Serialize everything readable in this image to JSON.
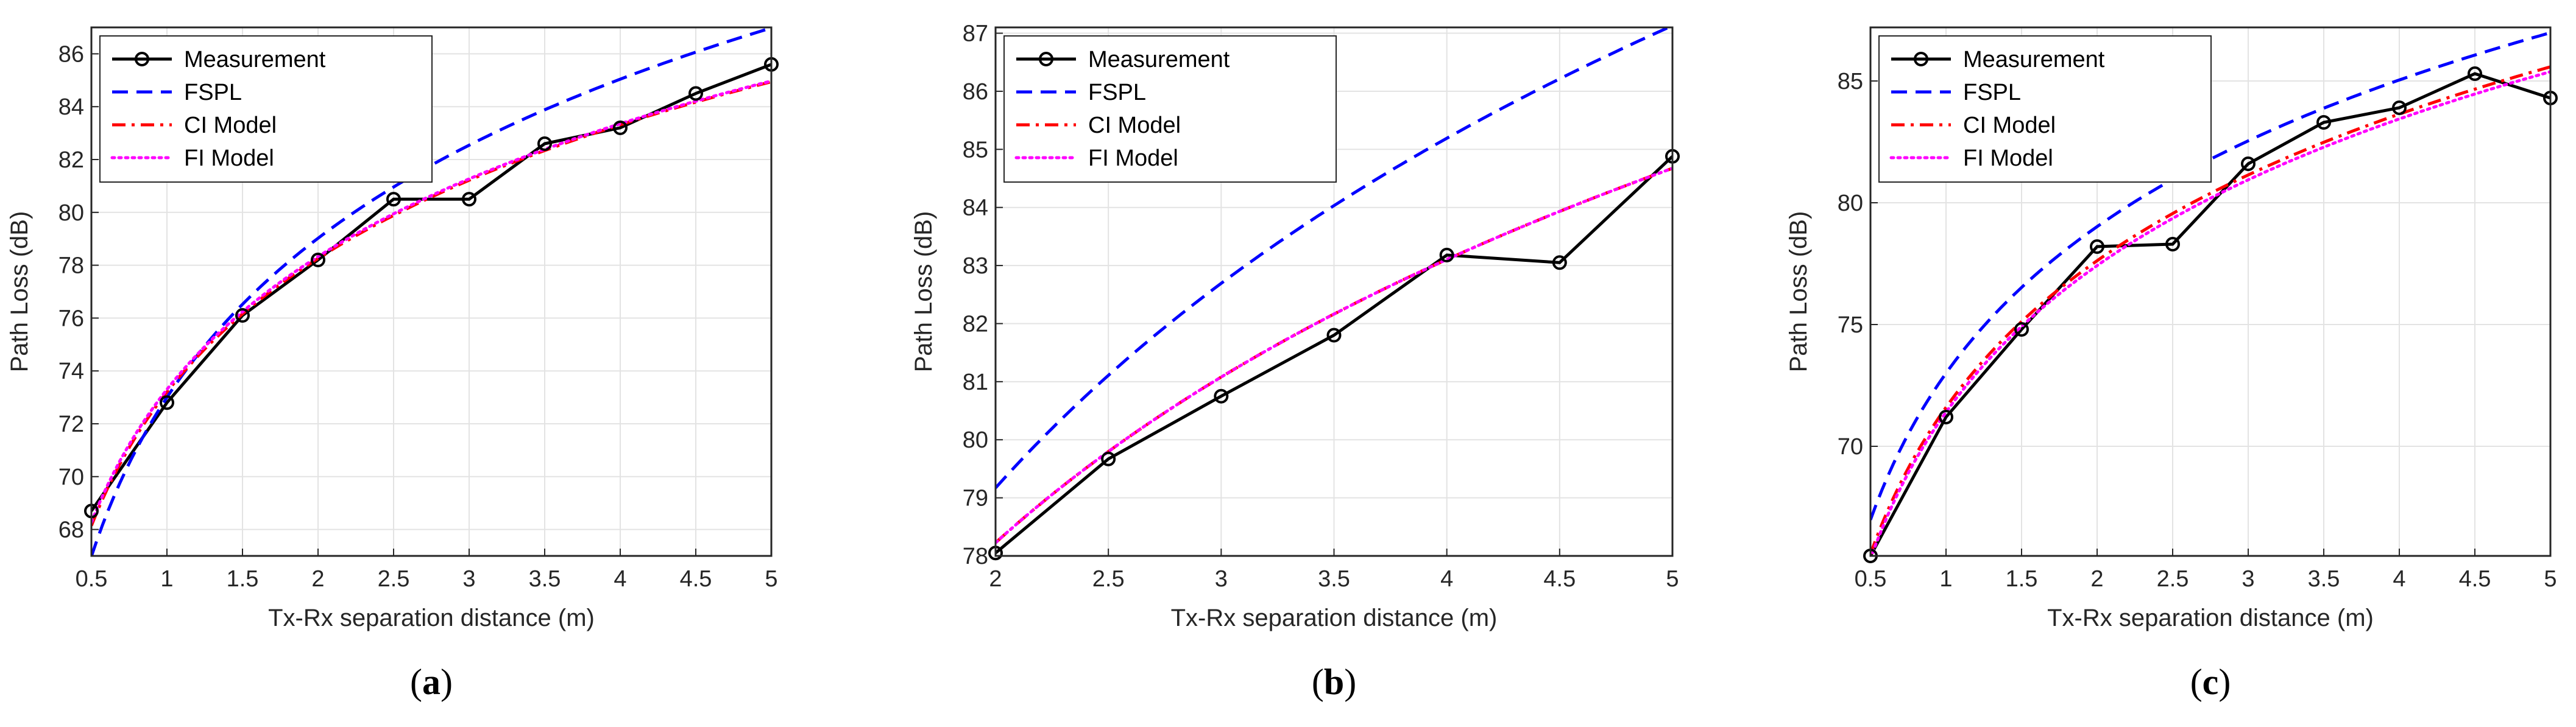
{
  "chart_data": [
    {
      "type": "line",
      "caption": "(a)",
      "caption_letter": "a",
      "xlabel": "Tx-Rx separation distance (m)",
      "ylabel": "Path Loss (dB)",
      "xlim": [
        0.5,
        5
      ],
      "ylim": [
        67,
        87
      ],
      "xticks": [
        0.5,
        1,
        1.5,
        2,
        2.5,
        3,
        3.5,
        4,
        4.5,
        5
      ],
      "xtick_labels": [
        "0.5",
        "1",
        "1.5",
        "2",
        "2.5",
        "3",
        "3.5",
        "4",
        "4.5",
        "5"
      ],
      "yticks": [
        68,
        70,
        72,
        74,
        76,
        78,
        80,
        82,
        84,
        86
      ],
      "ytick_labels": [
        "68",
        "70",
        "72",
        "74",
        "76",
        "78",
        "80",
        "82",
        "84",
        "86"
      ],
      "grid": true,
      "legend_position": "top-left",
      "series": [
        {
          "name": "Measurement",
          "color": "#000000",
          "style": "solid-marker",
          "x": [
            0.5,
            1,
            1.5,
            2,
            2.5,
            3,
            3.5,
            4,
            4.5,
            5
          ],
          "y": [
            68.7,
            72.8,
            76.1,
            78.2,
            80.5,
            80.5,
            82.6,
            83.2,
            84.5,
            85.6
          ]
        },
        {
          "name": "FSPL",
          "color": "#0000ff",
          "style": "dashed",
          "model": "log",
          "a": 73.0,
          "b": 20.0
        },
        {
          "name": "CI Model",
          "color": "#ff0000",
          "style": "dashdot",
          "model": "log",
          "a": 73.2,
          "b": 16.8
        },
        {
          "name": "FI Model",
          "color": "#ff00ff",
          "style": "dotted",
          "model": "log",
          "a": 73.3,
          "b": 16.7
        }
      ]
    },
    {
      "type": "line",
      "caption": "(b)",
      "caption_letter": "b",
      "xlabel": "Tx-Rx separation distance (m)",
      "ylabel": "Path Loss (dB)",
      "xlim": [
        2,
        5
      ],
      "ylim": [
        78,
        87.1
      ],
      "xticks": [
        2,
        2.5,
        3,
        3.5,
        4,
        4.5,
        5
      ],
      "xtick_labels": [
        "2",
        "2.5",
        "3",
        "3.5",
        "4",
        "4.5",
        "5"
      ],
      "yticks": [
        78,
        79,
        80,
        81,
        82,
        83,
        84,
        85,
        86,
        87
      ],
      "ytick_labels": [
        "78",
        "79",
        "80",
        "81",
        "82",
        "83",
        "84",
        "85",
        "86",
        "87"
      ],
      "grid": true,
      "legend_position": "top-left",
      "series": [
        {
          "name": "Measurement",
          "color": "#000000",
          "style": "solid-marker",
          "x": [
            2,
            2.5,
            3,
            3.5,
            4,
            4.5,
            5
          ],
          "y": [
            78.05,
            79.67,
            80.75,
            81.8,
            83.18,
            83.05,
            84.88
          ]
        },
        {
          "name": "FSPL",
          "color": "#0000ff",
          "style": "dashed",
          "model": "log",
          "a": 73.15,
          "b": 20.0
        },
        {
          "name": "CI Model",
          "color": "#ff0000",
          "style": "dashdot",
          "model": "log",
          "a": 73.35,
          "b": 16.2
        },
        {
          "name": "FI Model",
          "color": "#ff00ff",
          "style": "dotted",
          "model": "log",
          "a": 73.35,
          "b": 16.2
        }
      ]
    },
    {
      "type": "line",
      "caption": "(c)",
      "caption_letter": "c",
      "xlabel": "Tx-Rx separation distance (m)",
      "ylabel": "Path Loss (dB)",
      "xlim": [
        0.5,
        5
      ],
      "ylim": [
        65.5,
        87.2
      ],
      "xticks": [
        0.5,
        1,
        1.5,
        2,
        2.5,
        3,
        3.5,
        4,
        4.5,
        5
      ],
      "xtick_labels": [
        "0.5",
        "1",
        "1.5",
        "2",
        "2.5",
        "3",
        "3.5",
        "4",
        "4.5",
        "5"
      ],
      "yticks": [
        70,
        75,
        80,
        85
      ],
      "ytick_labels": [
        "70",
        "75",
        "80",
        "85"
      ],
      "grid": true,
      "legend_position": "top-left",
      "series": [
        {
          "name": "Measurement",
          "color": "#000000",
          "style": "solid-marker",
          "x": [
            0.5,
            1,
            1.5,
            2,
            2.5,
            3,
            3.5,
            4,
            4.5,
            5
          ],
          "y": [
            65.5,
            71.2,
            74.8,
            78.2,
            78.3,
            81.6,
            83.3,
            83.9,
            85.3,
            84.3
          ]
        },
        {
          "name": "FSPL",
          "color": "#0000ff",
          "style": "dashed",
          "model": "log",
          "a": 73.0,
          "b": 20.0
        },
        {
          "name": "CI Model",
          "color": "#ff0000",
          "style": "dashdot",
          "model": "log",
          "a": 71.6,
          "b": 20.0
        },
        {
          "name": "FI Model",
          "color": "#ff00ff",
          "style": "dotted",
          "model": "log",
          "a": 71.4,
          "b": 20.0
        }
      ]
    }
  ]
}
